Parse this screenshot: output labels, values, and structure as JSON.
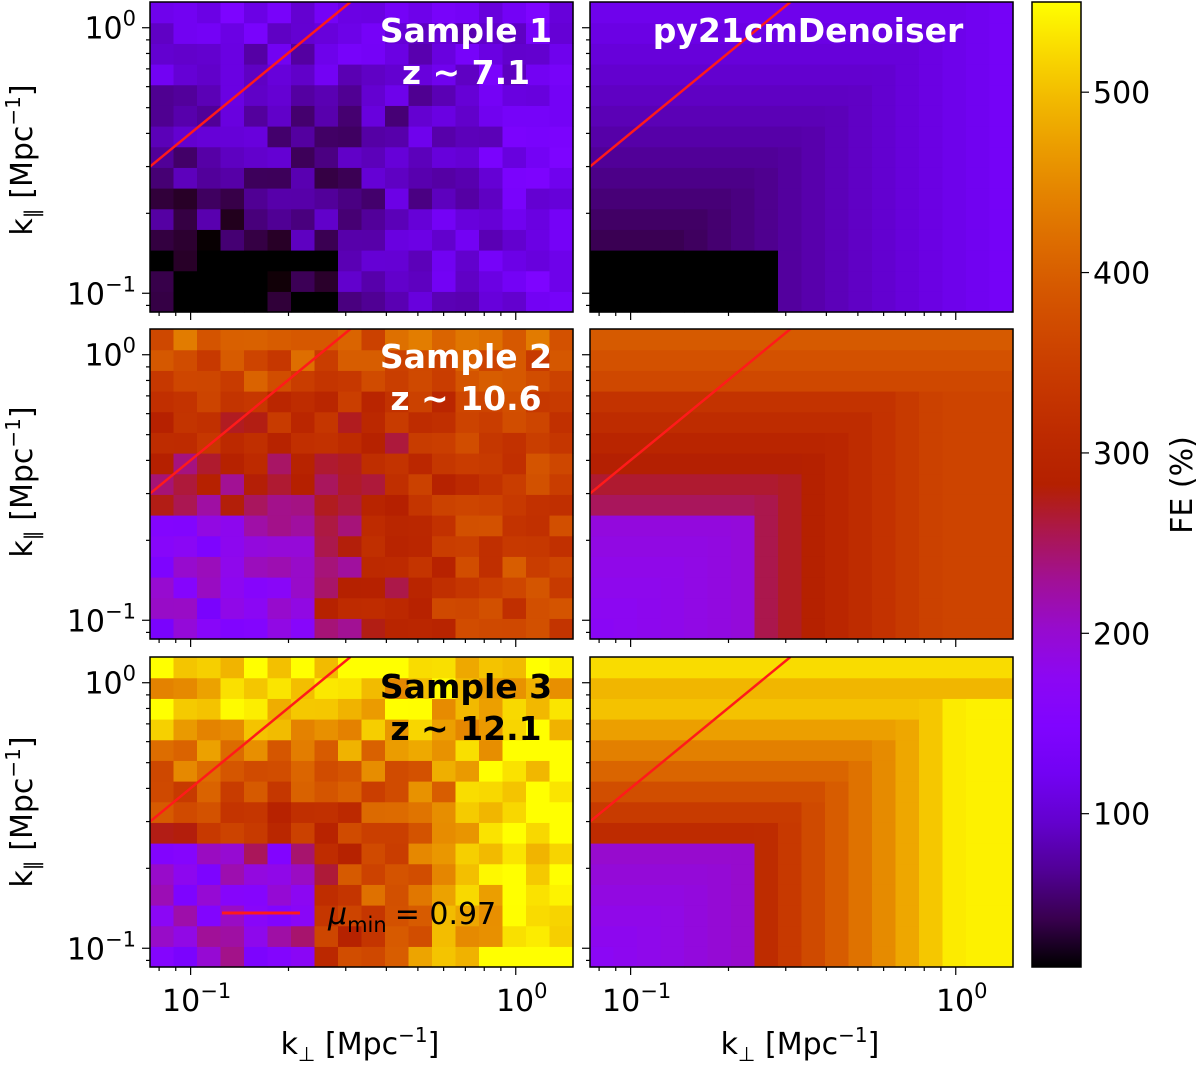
{
  "chart_data": {
    "type": "heatmap",
    "colormap": "gnuplot",
    "colorbar": {
      "label": "FE (%)",
      "range": [
        15,
        550
      ],
      "ticks": [
        "100",
        "200",
        "300",
        "400",
        "500"
      ]
    },
    "xlabel": "k⊥ [Mpc⁻¹]",
    "ylabel": "k∥ [Mpc⁻¹]",
    "xlim": [
      0.075,
      1.5
    ],
    "ylim": [
      0.085,
      1.25
    ],
    "x_ticks": [
      {
        "base": "10",
        "exp": "−1",
        "value": 0.1
      },
      {
        "base": "10",
        "exp": "0",
        "value": 1.0
      }
    ],
    "y_ticks": [
      {
        "base": "10",
        "exp": "−1",
        "value": 0.1
      },
      {
        "base": "10",
        "exp": "0",
        "value": 1.0
      }
    ],
    "rows": [
      {
        "label_line1": "Sample 1",
        "label_line2": "z ~ 7.1",
        "label_color": "#ffffff",
        "truth_mean": 62,
        "model_mean": 60
      },
      {
        "label_line1": "Sample 2",
        "label_line2": "z ~ 10.6",
        "label_color": "#ffffff",
        "truth_mean": 300,
        "model_mean": 295
      },
      {
        "label_line1": "Sample 3",
        "label_line2": "z ~ 12.1",
        "label_color": "#000000",
        "truth_mean": 410,
        "model_mean": 400
      }
    ],
    "columns": [
      "Sample",
      "py21cmDenoiser"
    ],
    "denoiser_title": "py21cmDenoiser",
    "wedge_line": {
      "color": "#ff1a1a",
      "points": [
        {
          "kperp": 0.075,
          "kpar": 0.3
        },
        {
          "kperp": 0.31,
          "kpar": 1.25
        }
      ],
      "legend_symbol": "μ",
      "legend_subscript": "min",
      "legend_value": "= 0.97"
    },
    "grid_bins": {
      "nx": 18,
      "ny": 15
    }
  }
}
